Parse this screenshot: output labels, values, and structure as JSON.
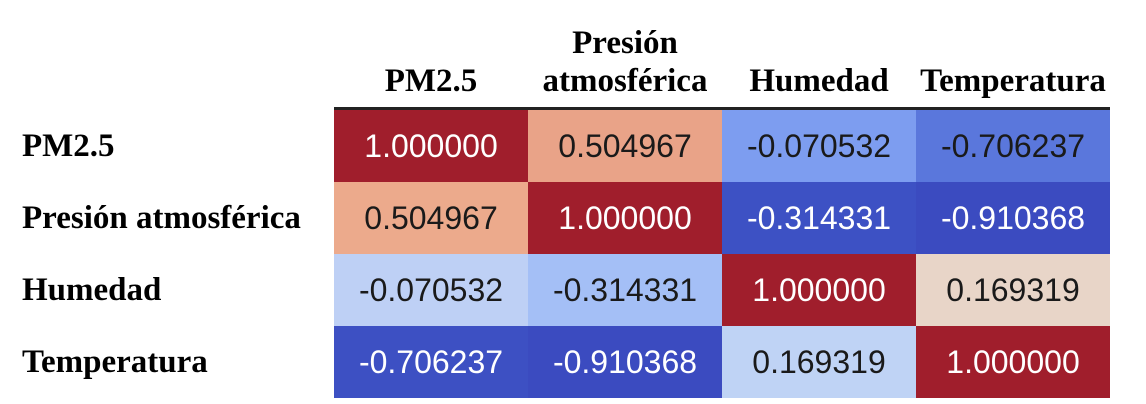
{
  "chart_data": {
    "type": "table",
    "columns": [
      "PM2.5",
      "Presión\natmosférica",
      "Humedad",
      "Temperatura"
    ],
    "rows": [
      "PM2.5",
      "Presión atmosférica",
      "Humedad",
      "Temperatura"
    ],
    "values": [
      [
        "1.000000",
        "0.504967",
        "-0.070532",
        "-0.706237"
      ],
      [
        "0.504967",
        "1.000000",
        "-0.314331",
        "-0.910368"
      ],
      [
        "-0.070532",
        "-0.314331",
        "1.000000",
        "0.169319"
      ],
      [
        "-0.706237",
        "-0.910368",
        "0.169319",
        "1.000000"
      ]
    ],
    "colormap": "coolwarm",
    "cell_colors": [
      [
        "#a01e2c",
        "#e9a388",
        "#7d9df0",
        "#5a77dc"
      ],
      [
        "#ecaa8c",
        "#a01e2c",
        "#3d51c4",
        "#3b4bc0"
      ],
      [
        "#bed0f5",
        "#a4bff6",
        "#a01e2c",
        "#e8d5c8"
      ],
      [
        "#3d50c3",
        "#3b4bc0",
        "#bfd3f5",
        "#a01e2c"
      ]
    ],
    "text_colors": [
      [
        "#ffffff",
        "#1a1a1a",
        "#1a1a1a",
        "#1a1a1a"
      ],
      [
        "#1a1a1a",
        "#ffffff",
        "#ffffff",
        "#ffffff"
      ],
      [
        "#1a1a1a",
        "#1a1a1a",
        "#ffffff",
        "#1a1a1a"
      ],
      [
        "#ffffff",
        "#ffffff",
        "#1a1a1a",
        "#ffffff"
      ]
    ]
  }
}
